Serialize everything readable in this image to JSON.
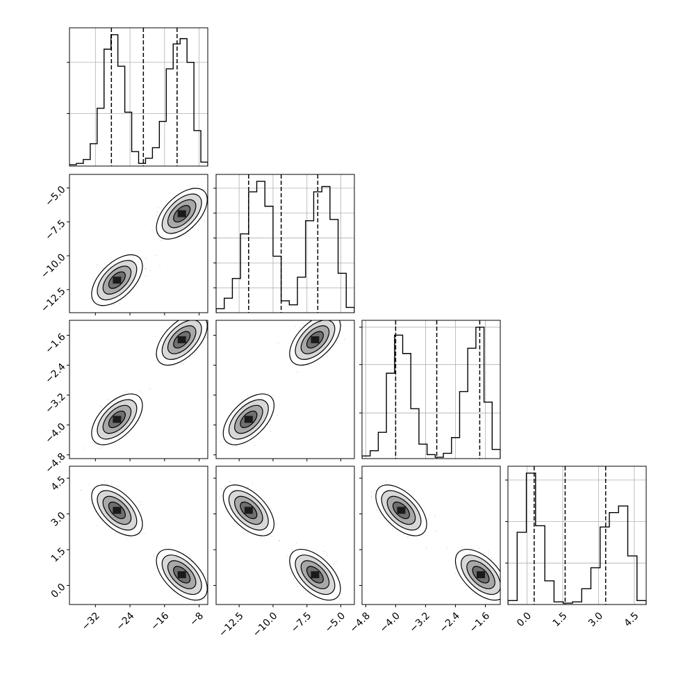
{
  "chart_data": {
    "type": "corner",
    "variables": [
      {
        "range": [
          -38,
          -6
        ],
        "ticks": [
          "−32",
          "−24",
          "−16",
          "−8"
        ],
        "tick_values": [
          -32,
          -24,
          -16,
          -8
        ],
        "quantiles": [
          -28.3,
          -20.9,
          -13.1
        ]
      },
      {
        "range": [
          -14.2,
          -4.0
        ],
        "ticks": [
          "−12.5",
          "−10.0",
          "−7.5",
          "−5.0"
        ],
        "tick_values": [
          -12.5,
          -10.0,
          -7.5,
          -5.0
        ],
        "quantiles": [
          -11.8,
          -9.4,
          -6.7
        ]
      },
      {
        "range": [
          -4.9,
          -1.2
        ],
        "ticks": [
          "−4.8",
          "−4.0",
          "−3.2",
          "−2.4",
          "−1.6"
        ],
        "tick_values": [
          -4.8,
          -4.0,
          -3.2,
          -2.4,
          -1.6
        ],
        "quantiles": [
          -4.0,
          -2.9,
          -1.75
        ]
      },
      {
        "range": [
          -0.8,
          5.0
        ],
        "ticks": [
          "0.0",
          "1.5",
          "3.0",
          "4.5"
        ],
        "tick_values": [
          0.0,
          1.5,
          3.0,
          4.5
        ],
        "quantiles": [
          0.3,
          1.6,
          3.3
        ]
      }
    ],
    "histograms": [
      {
        "counts": [
          0.01,
          0.02,
          0.05,
          0.17,
          0.44,
          0.89,
          1.0,
          0.76,
          0.41,
          0.11,
          0.02,
          0.06,
          0.14,
          0.34,
          0.74,
          0.93,
          0.97,
          0.79,
          0.27,
          0.03
        ],
        "yticks": [
          0.38,
          0.75
        ]
      },
      {
        "counts": [
          0.03,
          0.11,
          0.26,
          0.6,
          0.92,
          1.0,
          0.81,
          0.43,
          0.09,
          0.06,
          0.27,
          0.7,
          0.92,
          0.96,
          0.71,
          0.3,
          0.04
        ],
        "yticks": [
          0.18,
          0.36,
          0.54,
          0.72,
          0.9
        ]
      },
      {
        "counts": [
          0.02,
          0.06,
          0.2,
          0.65,
          0.94,
          0.8,
          0.38,
          0.11,
          0.03,
          0.01,
          0.04,
          0.16,
          0.51,
          0.84,
          1.0,
          0.43,
          0.07
        ],
        "yticks": [
          0.33,
          0.68,
          0.95
        ]
      },
      {
        "counts": [
          0.03,
          0.55,
          1.0,
          0.6,
          0.18,
          0.02,
          0.01,
          0.02,
          0.12,
          0.28,
          0.59,
          0.7,
          0.75,
          0.37,
          0.03
        ],
        "yticks": [
          0.3,
          0.6,
          0.9
        ]
      }
    ],
    "clusters": [
      [
        -27.0,
        -11.8,
        -3.85,
        3.15
      ],
      [
        -12.0,
        -6.9,
        -1.72,
        0.45
      ]
    ],
    "grid": true,
    "contour_levels": 4
  }
}
